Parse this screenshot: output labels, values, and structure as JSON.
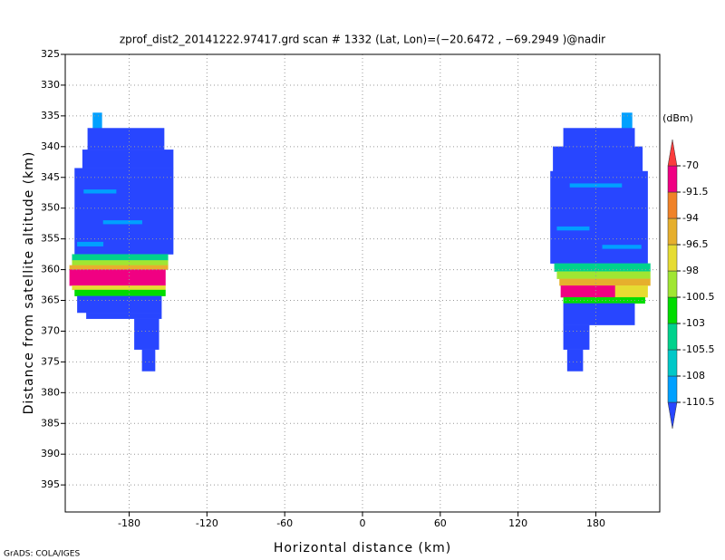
{
  "chart_data": {
    "type": "heatmap",
    "title": "zprof_dist2_20141222.97417.grd  scan # 1332  (Lat, Lon)=(−20.6472 , −69.2949 )@nadir",
    "x_label": "Horizontal distance (km)",
    "y_label": "Distance from satellite altitude (km)",
    "footer": "GrADS: COLA/IGES",
    "xlim": [
      -229.3,
      229.3
    ],
    "ylim": [
      325,
      399.4
    ],
    "y_reversed": true,
    "xticks": [
      -180,
      -120,
      -60,
      0,
      60,
      120,
      180
    ],
    "yticks": [
      325,
      330,
      335,
      340,
      345,
      350,
      355,
      360,
      365,
      370,
      375,
      380,
      385,
      390,
      395
    ],
    "grid": true,
    "colorbar": {
      "unit": "(dBm)",
      "levels": [
        -110.5,
        -108,
        -105.5,
        -103,
        -100.5,
        -98,
        -96.5,
        -94,
        -91.5,
        -70
      ],
      "colors": [
        "#2846ff",
        "#00a0ff",
        "#00c8c8",
        "#00d28c",
        "#00dc00",
        "#a0e632",
        "#e6dc32",
        "#e6af2d",
        "#f08228",
        "#f00082",
        "#fa3c3c"
      ]
    },
    "cells": [
      [
        -208,
        -201,
        334.5,
        337,
        -109
      ],
      [
        -212,
        -153,
        337,
        340.5,
        -112
      ],
      [
        -216,
        -146,
        340.5,
        343.5,
        -112
      ],
      [
        -222,
        -146,
        343.5,
        357.5,
        -112
      ],
      [
        -215,
        -190,
        347,
        347.6,
        -109
      ],
      [
        -200,
        -170,
        352,
        352.6,
        -109
      ],
      [
        -220,
        -200,
        355.5,
        356.2,
        -109
      ],
      [
        -224,
        -150,
        357.5,
        358.5,
        -104
      ],
      [
        -224,
        -150,
        358.5,
        359.3,
        -99
      ],
      [
        -226,
        -150,
        359.3,
        360,
        -95
      ],
      [
        -226,
        -152,
        360,
        362.6,
        -90
      ],
      [
        -224,
        -152,
        362.6,
        363.3,
        -97
      ],
      [
        -222,
        -152,
        363.3,
        364.3,
        -102
      ],
      [
        -220,
        -155,
        364.3,
        367,
        -112
      ],
      [
        -213,
        -155,
        367,
        368,
        -112
      ],
      [
        -176,
        -157,
        368,
        373,
        -112
      ],
      [
        -170,
        -160,
        373,
        376.5,
        -112
      ],
      [
        200,
        208,
        334.5,
        337,
        -109
      ],
      [
        155,
        210,
        337,
        340,
        -112
      ],
      [
        147,
        216,
        340,
        344,
        -112
      ],
      [
        145,
        220,
        344,
        359,
        -112
      ],
      [
        160,
        200,
        346,
        346.6,
        -109
      ],
      [
        150,
        175,
        353,
        353.6,
        -109
      ],
      [
        185,
        215,
        356,
        356.6,
        -109
      ],
      [
        148,
        222,
        359,
        360.3,
        -104
      ],
      [
        150,
        222,
        360.3,
        361.5,
        -99
      ],
      [
        152,
        222,
        361.5,
        362.6,
        -95
      ],
      [
        153,
        195,
        362.6,
        364.5,
        -90
      ],
      [
        195,
        220,
        362.6,
        364.5,
        -97
      ],
      [
        155,
        218,
        364.5,
        365.5,
        -102
      ],
      [
        155,
        210,
        365.5,
        369,
        -112
      ],
      [
        155,
        175,
        369,
        373,
        -112
      ],
      [
        158,
        170,
        373,
        376.5,
        -112
      ]
    ]
  }
}
